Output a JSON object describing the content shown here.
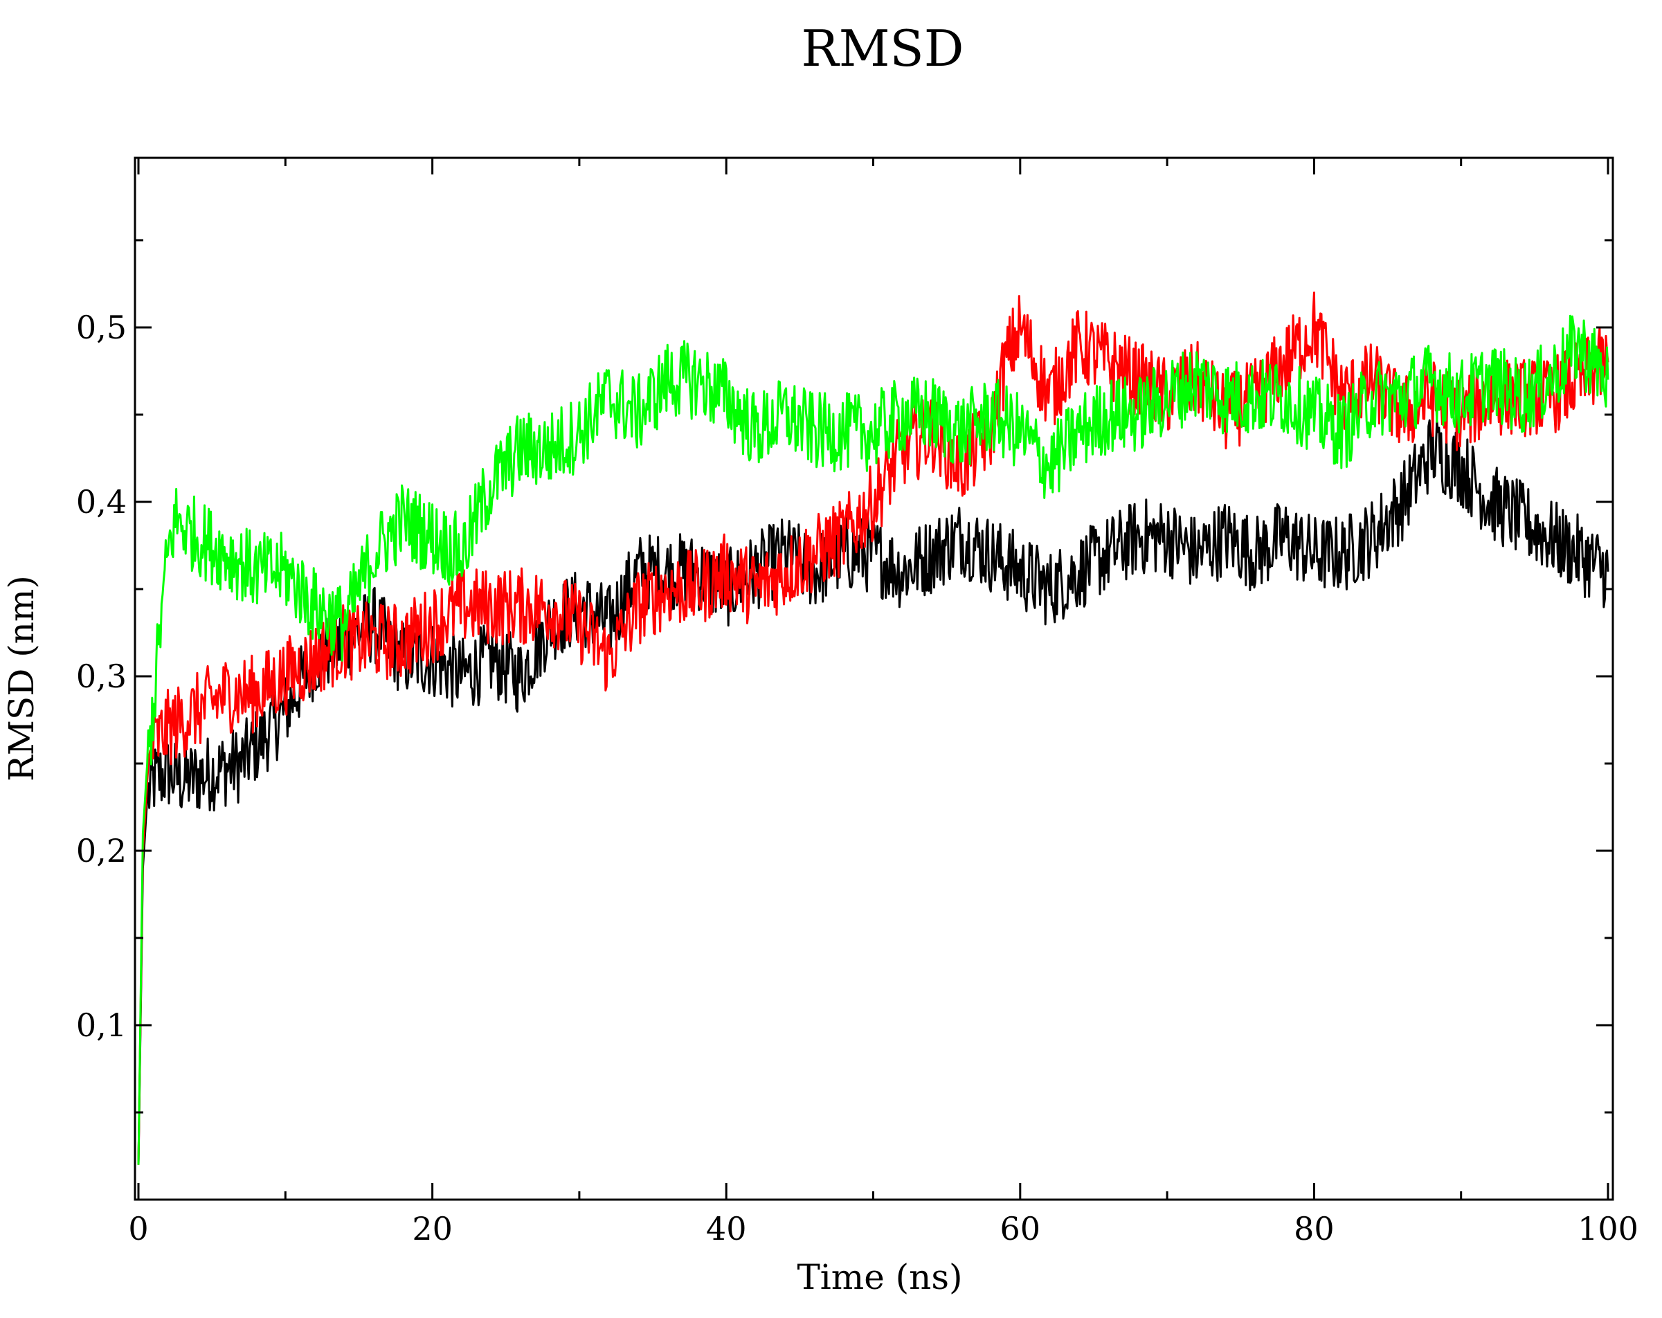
{
  "chart_data": {
    "type": "line",
    "title": "RMSD",
    "xlabel": "Time (ns)",
    "ylabel": "RMSD (nm)",
    "xlim": [
      0,
      100
    ],
    "ylim": [
      0,
      0.6
    ],
    "x_major_ticks": [
      0,
      20,
      40,
      60,
      80,
      100
    ],
    "x_tick_labels": [
      "0",
      "20",
      "40",
      "60",
      "80",
      "100"
    ],
    "y_major_ticks": [
      0.1,
      0.2,
      0.3,
      0.4,
      0.5
    ],
    "y_tick_labels": [
      "0,1",
      "0,2",
      "0,3",
      "0,4",
      "0,5"
    ],
    "grid": false,
    "legend": "none",
    "series": [
      {
        "color": "#000000",
        "x": [
          0,
          0.3,
          0.6,
          1,
          2,
          3,
          5,
          7,
          8,
          10,
          12,
          14,
          16,
          18,
          20,
          22,
          24,
          26,
          28,
          30,
          32,
          34,
          36,
          38,
          40,
          42,
          44,
          46,
          48,
          50,
          52,
          54,
          56,
          58,
          60,
          62,
          64,
          66,
          68,
          70,
          72,
          74,
          76,
          78,
          80,
          82,
          84,
          86,
          88,
          90,
          92,
          94,
          96,
          98,
          100
        ],
        "y": [
          0.02,
          0.19,
          0.23,
          0.24,
          0.245,
          0.24,
          0.245,
          0.25,
          0.26,
          0.28,
          0.31,
          0.32,
          0.33,
          0.31,
          0.31,
          0.3,
          0.31,
          0.3,
          0.33,
          0.34,
          0.33,
          0.36,
          0.36,
          0.36,
          0.35,
          0.36,
          0.37,
          0.36,
          0.37,
          0.37,
          0.36,
          0.37,
          0.38,
          0.37,
          0.36,
          0.35,
          0.36,
          0.37,
          0.38,
          0.38,
          0.37,
          0.38,
          0.37,
          0.38,
          0.37,
          0.37,
          0.38,
          0.4,
          0.43,
          0.42,
          0.4,
          0.39,
          0.38,
          0.37,
          0.36
        ]
      },
      {
        "color": "#ff0000",
        "x": [
          0,
          0.3,
          0.6,
          1,
          2,
          4,
          6,
          8,
          10,
          12,
          14,
          16,
          18,
          20,
          22,
          24,
          26,
          28,
          30,
          32,
          34,
          36,
          38,
          40,
          42,
          44,
          46,
          48,
          50,
          52,
          54,
          56,
          58,
          59,
          60,
          62,
          64,
          66,
          68,
          70,
          72,
          74,
          76,
          78,
          80,
          82,
          84,
          86,
          88,
          90,
          92,
          94,
          96,
          98,
          100
        ],
        "y": [
          0.02,
          0.2,
          0.24,
          0.26,
          0.27,
          0.28,
          0.29,
          0.29,
          0.3,
          0.31,
          0.32,
          0.32,
          0.32,
          0.33,
          0.34,
          0.34,
          0.34,
          0.34,
          0.33,
          0.31,
          0.34,
          0.35,
          0.35,
          0.36,
          0.35,
          0.36,
          0.37,
          0.38,
          0.4,
          0.43,
          0.44,
          0.42,
          0.44,
          0.48,
          0.5,
          0.46,
          0.49,
          0.48,
          0.47,
          0.46,
          0.47,
          0.45,
          0.46,
          0.48,
          0.5,
          0.46,
          0.47,
          0.45,
          0.46,
          0.45,
          0.46,
          0.46,
          0.46,
          0.47,
          0.48
        ]
      },
      {
        "color": "#00ff00",
        "x": [
          0,
          0.3,
          0.6,
          1,
          1.5,
          2,
          2.5,
          4,
          6,
          8,
          10,
          12,
          14,
          16,
          18,
          20,
          22,
          24,
          26,
          28,
          30,
          32,
          34,
          36,
          38,
          40,
          42,
          44,
          46,
          48,
          50,
          52,
          54,
          56,
          58,
          60,
          62,
          64,
          66,
          68,
          70,
          72,
          74,
          76,
          78,
          80,
          82,
          84,
          86,
          88,
          90,
          92,
          94,
          96,
          98,
          100
        ],
        "y": [
          0.02,
          0.21,
          0.25,
          0.28,
          0.33,
          0.37,
          0.39,
          0.38,
          0.37,
          0.36,
          0.36,
          0.34,
          0.33,
          0.37,
          0.39,
          0.38,
          0.37,
          0.41,
          0.43,
          0.43,
          0.44,
          0.46,
          0.45,
          0.47,
          0.47,
          0.46,
          0.44,
          0.45,
          0.44,
          0.44,
          0.44,
          0.45,
          0.45,
          0.44,
          0.45,
          0.44,
          0.42,
          0.44,
          0.45,
          0.45,
          0.46,
          0.47,
          0.46,
          0.46,
          0.46,
          0.45,
          0.44,
          0.46,
          0.46,
          0.47,
          0.46,
          0.47,
          0.46,
          0.47,
          0.49,
          0.47
        ]
      }
    ]
  }
}
